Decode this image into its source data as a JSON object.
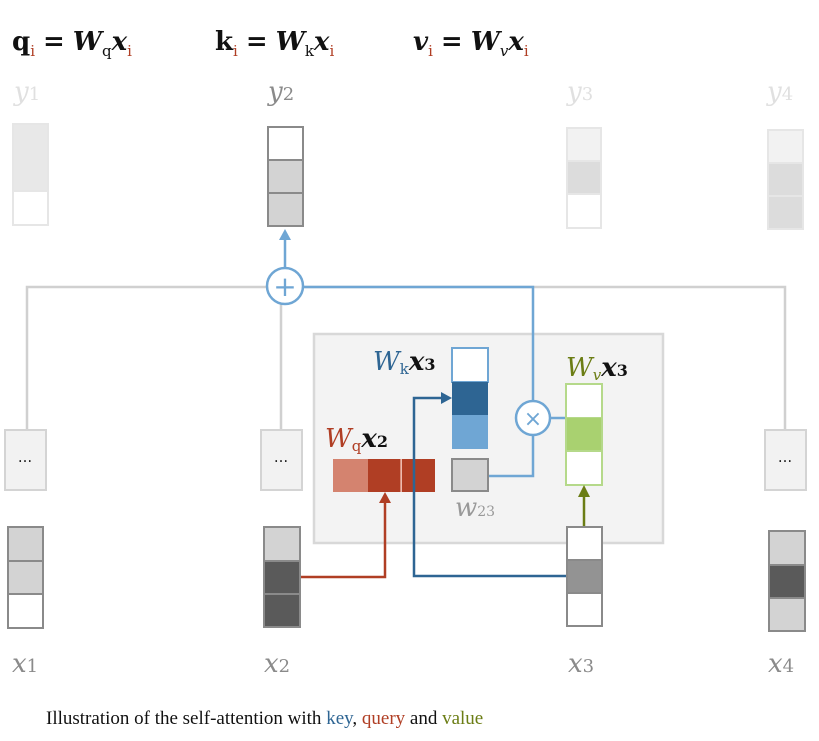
{
  "equations": [
    {
      "lhs": "q",
      "lhs_sub": "i",
      "w_sub": "q",
      "x": "x",
      "x_sub": "i"
    },
    {
      "lhs": "k",
      "lhs_sub": "i",
      "w_sub": "k",
      "x": "x",
      "x_sub": "i"
    },
    {
      "lhs": "v",
      "lhs_sub": "i",
      "w_sub": "v",
      "x": "x",
      "x_sub": "i"
    }
  ],
  "eq_symbols": {
    "eq": "=",
    "W": "W"
  },
  "outputs": [
    {
      "label": "y",
      "sub": "1"
    },
    {
      "label": "y",
      "sub": "2"
    },
    {
      "label": "y",
      "sub": "3"
    },
    {
      "label": "y",
      "sub": "4"
    }
  ],
  "inputs": [
    {
      "label": "x",
      "sub": "1"
    },
    {
      "label": "x",
      "sub": "2"
    },
    {
      "label": "x",
      "sub": "3"
    },
    {
      "label": "x",
      "sub": "4"
    }
  ],
  "ellipsis": "...",
  "plus_symbol": "+",
  "times_symbol": "×",
  "inner": {
    "key_label": {
      "w": "W",
      "sub": "k",
      "x": "x",
      "xsub": "3"
    },
    "query_label": {
      "w": "W",
      "sub": "q",
      "x": "x",
      "xsub": "2"
    },
    "value_label": {
      "w": "W",
      "sub": "v",
      "x": "x",
      "xsub": "3"
    },
    "weight_label": {
      "w": "w",
      "sub": "23"
    }
  },
  "caption": {
    "prefix": "Illustration of the self-attention with ",
    "key": "key",
    "sep": ", ",
    "query": "query",
    "and": " and ",
    "value": "value"
  },
  "colors": {
    "key": "#2e6593",
    "key_light": "#6fa6d4",
    "query": "#b03e24",
    "query_light": "#d4836f",
    "value": "#6b7d14",
    "value_fill": "#a9d170",
    "gray_line": "#d0d0d0"
  }
}
